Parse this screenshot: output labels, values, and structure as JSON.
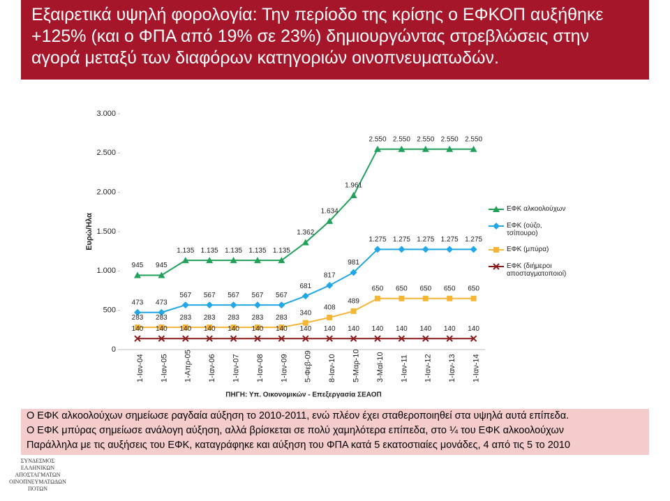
{
  "chart_data": {
    "type": "line",
    "title": "Εξαιρετικά υψηλή φορολογία: Την περίοδο της κρίσης ο ΕΦΚΟΠ αυξήθηκε +125% (και ο ΦΠΑ από 19% σε 23%) δημιουργώντας στρεβλώσεις στην αγορά μεταξύ των διαφόρων κατηγοριών οινοπνευματωδών.",
    "y_label": "Ευρώ/Ηλα",
    "source": "ΠΗΓΗ: Υπ. Οικονομικών - Επεξεργασία ΣΕΑΟΠ",
    "categories": [
      "1-Ιαν-04",
      "1-Ιαν-05",
      "1-Απρ-05",
      "1-Ιαν-06",
      "1-Ιαν-07",
      "1-Ιαν-08",
      "1-Ιαν-09",
      "5-Φεβ-09",
      "8-Ιαν-10",
      "5-Μαρ-10",
      "3-Μαϊ-10",
      "1-Ιαν-11",
      "1-Ιαν-12",
      "1-Ιαν-13",
      "1-Ιαν-14"
    ],
    "series": [
      {
        "name": "ΕΦΚ αλκοολούχων",
        "color": "#21a05a",
        "marker": "triangle",
        "values": [
          945,
          945,
          1135,
          1135,
          1135,
          1135,
          1135,
          1362,
          1634,
          1961,
          2550,
          2550,
          2550,
          2550,
          2550
        ],
        "value_labels": [
          "945",
          "945",
          "1.135",
          "1.135",
          "1.135",
          "1.135",
          "1.135",
          "1.362",
          "1.634",
          "1.961",
          "2.550",
          "2.550",
          "2.550",
          "2.550",
          "2.550"
        ]
      },
      {
        "name": "ΕΦΚ (ούζο, τσίπουρο)",
        "color": "#22a6e6",
        "marker": "diamond",
        "values": [
          473,
          473,
          567,
          567,
          567,
          567,
          567,
          681,
          817,
          981,
          1275,
          1275,
          1275,
          1275,
          1275
        ],
        "value_labels": [
          "473",
          "473",
          "567",
          "567",
          "567",
          "567",
          "567",
          "681",
          "817",
          "981",
          "1.275",
          "1.275",
          "1.275",
          "1.275",
          "1.275"
        ]
      },
      {
        "name": "ΕΦΚ (μπύρα)",
        "color": "#f6b535",
        "marker": "square",
        "values": [
          283,
          283,
          283,
          283,
          283,
          283,
          283,
          340,
          408,
          489,
          650,
          650,
          650,
          650,
          650
        ]
      },
      {
        "name": "ΕΦΚ (διήμεροι αποσταγματοποιοί)",
        "color": "#8b1a1a",
        "marker": "x",
        "values": [
          140,
          140,
          140,
          140,
          140,
          140,
          140,
          140,
          140,
          140,
          140,
          140,
          140,
          140,
          140
        ]
      }
    ],
    "ylim": [
      0,
      3000
    ],
    "yticks": [
      0,
      500,
      {
        "value": 1000,
        "label": "1.000"
      },
      {
        "value": 1500,
        "label": "1.500"
      },
      {
        "value": 2000,
        "label": "2.000"
      },
      {
        "value": 2500,
        "label": "2.500"
      },
      {
        "value": 3000,
        "label": "3.000"
      }
    ],
    "legend": "right"
  },
  "notes": [
    "Ο ΕΦΚ αλκοολούχων σημείωσε ραγδαία αύξηση το 2010-2011, ενώ πλέον έχει σταθεροποιηθεί στα υψηλά αυτά επίπεδα.",
    "Ο ΕΦΚ μπύρας σημείωσε ανάλογη αύξηση, αλλά βρίσκεται σε πολύ χαμηλότερα επίπεδα, στο ¼ του ΕΦΚ αλκοολούχων",
    "Παράλληλα με τις αυξήσεις του ΕΦΚ, καταγράφηκε και αύξηση του ΦΠΑ κατά 5 εκατοστιαίες μονάδες, 4 από τις 5 το 2010"
  ],
  "logo": [
    "ΣΥΝΔΕΣΜΟΣ",
    "ΕΛΛΗΝΙΚΩΝ",
    "ΑΠΟΣΤΑΓΜΑΤΩΝ",
    "ΟΙΝΟΠΝΕΥΜΑΤΩΔΩΝ",
    "ΠΟΤΩΝ"
  ]
}
